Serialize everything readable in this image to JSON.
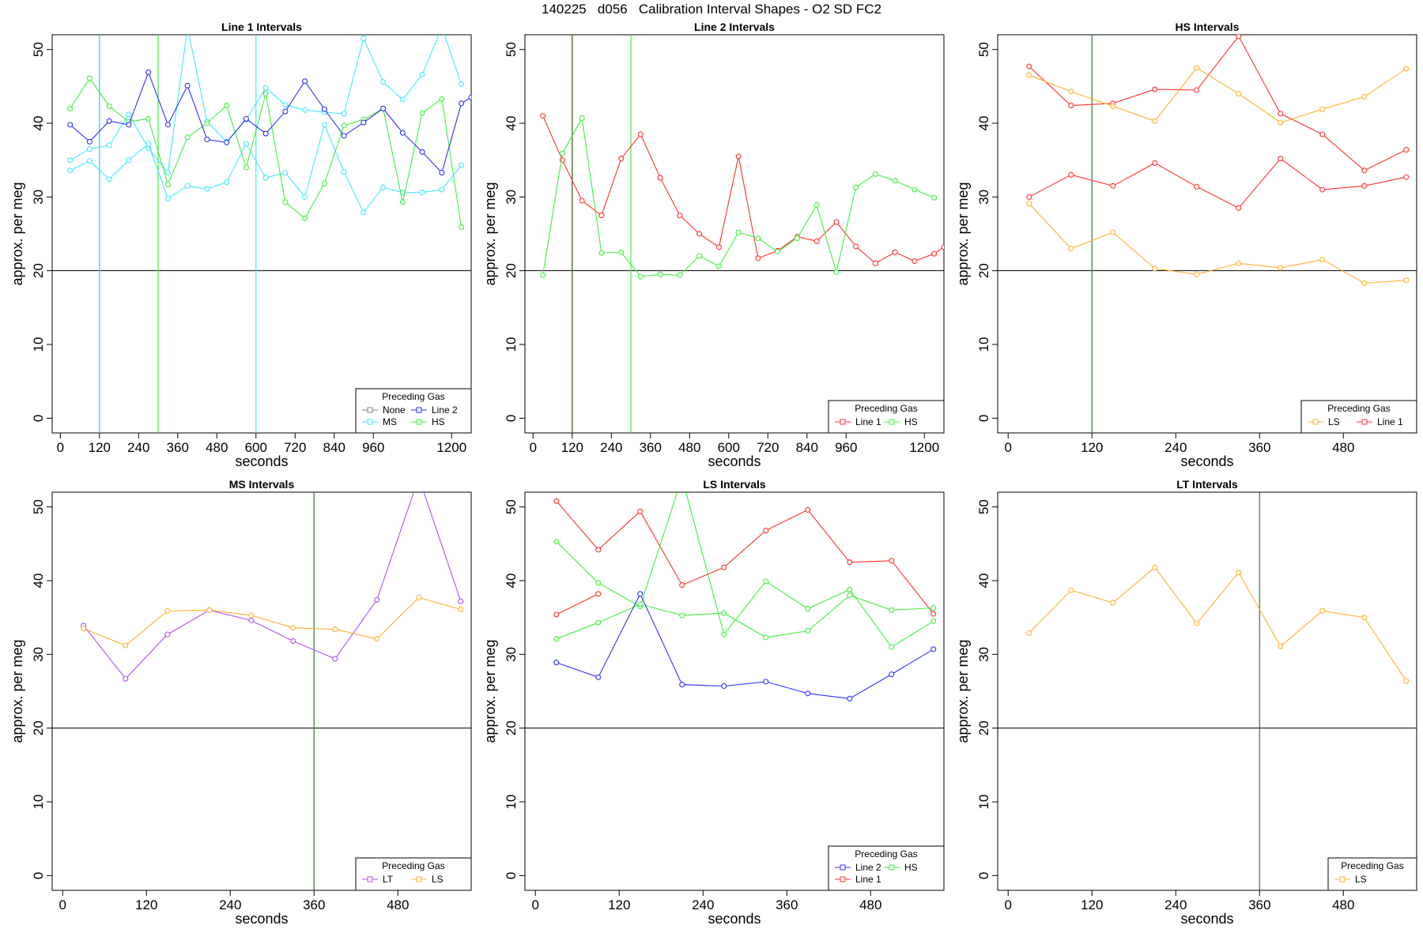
{
  "figure_title": "140225   d056   Calibration Interval Shapes - O2 SD FC2",
  "colors": {
    "None": "#7f7f7f",
    "Line 1": "#ff3030",
    "Line 2": "#3030ff",
    "MS": "#40e8ff",
    "HS": "#40ee40",
    "LS": "#ffb030",
    "LT": "#b050f0",
    "axis": "#000000",
    "ref": "#000000"
  },
  "chart_data": [
    {
      "type": "line",
      "title": "Line 1 Intervals",
      "xlabel": "seconds",
      "ylabel": "approx. per meg",
      "xlim": [
        -25,
        1260
      ],
      "ylim": [
        -2,
        52
      ],
      "xticks": [
        0,
        120,
        240,
        360,
        480,
        600,
        720,
        840,
        960,
        1200
      ],
      "xtick_labels": [
        "0",
        "120",
        "240",
        "360",
        "480",
        "600",
        "720",
        "840",
        "960",
        "1200"
      ],
      "yticks": [
        0,
        10,
        20,
        30,
        40,
        50
      ],
      "hline": 20,
      "vlines": [
        {
          "x": 120,
          "color": "#3030ff"
        },
        {
          "x": 120,
          "color": "#40e8ff"
        },
        {
          "x": 300,
          "color": "#40ee40"
        },
        {
          "x": 600,
          "color": "#40e8ff"
        }
      ],
      "legend": {
        "title": "Preceding Gas",
        "position": "bottom-right",
        "entries": [
          [
            "None",
            "Line 2"
          ],
          [
            "MS",
            "HS"
          ]
        ]
      },
      "series": [
        {
          "name": "MS",
          "x": [
            30,
            90,
            150,
            210,
            270,
            330,
            390,
            450,
            510,
            570,
            630,
            690,
            750,
            810,
            870,
            930,
            990,
            1050,
            1110,
            1170,
            1230
          ],
          "values": [
            35,
            36.5,
            37,
            41.2,
            36.6,
            33.3,
            53,
            40.2,
            37.5,
            40.5,
            44.8,
            42.5,
            41.8,
            41.5,
            41.3,
            51.5,
            45.6,
            43.2,
            46.6,
            53,
            45.3
          ]
        },
        {
          "name": "MS",
          "x": [
            30,
            90,
            150,
            210,
            270,
            330,
            390,
            450,
            510,
            570,
            630,
            690,
            750,
            810,
            870,
            930,
            990,
            1050,
            1110,
            1170,
            1230
          ],
          "values": [
            33.6,
            34.9,
            32.4,
            35,
            37.2,
            29.8,
            31.5,
            31.1,
            32,
            37.2,
            32.6,
            33.3,
            30,
            39.8,
            33.4,
            27.9,
            31.3,
            30.6,
            30.6,
            31,
            34.3
          ]
        },
        {
          "name": "HS",
          "x": [
            30,
            90,
            150,
            210,
            270,
            330,
            390,
            450,
            510,
            570,
            630,
            690,
            750,
            810,
            870,
            930,
            990,
            1050,
            1110,
            1170,
            1230
          ],
          "values": [
            42,
            46.1,
            42.3,
            40.2,
            40.6,
            31.7,
            38.1,
            40,
            42.4,
            34,
            44,
            29.3,
            27.1,
            31.8,
            39.7,
            40.5,
            42,
            29.3,
            41.4,
            43.3,
            25.9
          ]
        },
        {
          "name": "Line 2",
          "x": [
            30,
            90,
            150,
            210,
            270,
            330,
            390,
            450,
            510,
            570,
            630,
            690,
            750,
            810,
            870,
            930,
            990,
            1050,
            1110,
            1170,
            1230,
            1260
          ],
          "values": [
            39.8,
            37.5,
            40.3,
            39.8,
            46.9,
            39.8,
            45.1,
            37.8,
            37.4,
            40.6,
            38.6,
            41.6,
            45.7,
            41.9,
            38.3,
            40.1,
            42,
            38.7,
            36.1,
            33.3,
            42.7,
            43.5
          ]
        }
      ]
    },
    {
      "type": "line",
      "title": "Line 2 Intervals",
      "xlabel": "seconds",
      "ylabel": "approx. per meg",
      "xlim": [
        -25,
        1260
      ],
      "ylim": [
        -2,
        52
      ],
      "xticks": [
        0,
        120,
        240,
        360,
        480,
        600,
        720,
        840,
        960,
        1200
      ],
      "xtick_labels": [
        "0",
        "120",
        "240",
        "360",
        "480",
        "600",
        "720",
        "840",
        "960",
        "1200"
      ],
      "yticks": [
        0,
        10,
        20,
        30,
        40,
        50
      ],
      "hline": 20,
      "vlines": [
        {
          "x": 120,
          "color": "#ff3030"
        },
        {
          "x": 120,
          "color": "#2a7a2a"
        },
        {
          "x": 300,
          "color": "#40ee40"
        }
      ],
      "legend": {
        "title": "Preceding Gas",
        "position": "bottom-right",
        "entries": [
          [
            "Line 1",
            "HS"
          ]
        ]
      },
      "series": [
        {
          "name": "Line 1",
          "x": [
            30,
            90,
            150,
            210,
            270,
            330,
            390,
            450,
            510,
            570,
            630,
            690,
            750,
            810,
            870,
            930,
            990,
            1050,
            1110,
            1170,
            1230,
            1260
          ],
          "values": [
            41,
            35,
            29.5,
            27.5,
            35.2,
            38.5,
            32.6,
            27.5,
            25,
            23.2,
            35.5,
            21.7,
            22.7,
            24.6,
            24,
            26.6,
            23.3,
            21,
            22.5,
            21.3,
            22.3,
            23.2
          ]
        },
        {
          "name": "HS",
          "x": [
            30,
            90,
            150,
            210,
            270,
            330,
            390,
            450,
            510,
            570,
            630,
            690,
            750,
            810,
            870,
            930,
            990,
            1050,
            1110,
            1170,
            1230
          ],
          "values": [
            19.4,
            35.9,
            40.7,
            22.4,
            22.5,
            19.2,
            19.5,
            19.4,
            22,
            20.6,
            25.2,
            24.4,
            22.6,
            24.4,
            28.9,
            19.8,
            31.3,
            33.1,
            32.2,
            31,
            29.9
          ]
        }
      ]
    },
    {
      "type": "line",
      "title": "HS Intervals",
      "xlabel": "seconds",
      "ylabel": "approx. per meg",
      "xlim": [
        -15,
        585
      ],
      "ylim": [
        -2,
        52
      ],
      "xticks": [
        0,
        120,
        240,
        360,
        480
      ],
      "xtick_labels": [
        "0",
        "120",
        "240",
        "360",
        "480"
      ],
      "yticks": [
        0,
        10,
        20,
        30,
        40,
        50
      ],
      "hline": 20,
      "vlines": [
        {
          "x": 120,
          "color": "#2a7a2a"
        }
      ],
      "legend": {
        "title": "Preceding Gas",
        "position": "bottom-right",
        "entries": [
          [
            "LS",
            "Line 1"
          ]
        ]
      },
      "series": [
        {
          "name": "Line 1",
          "x": [
            30,
            90,
            150,
            210,
            270,
            330,
            390,
            450,
            510,
            570
          ],
          "values": [
            47.7,
            42.4,
            42.7,
            44.6,
            44.5,
            51.8,
            41.3,
            38.5,
            33.6,
            36.4
          ]
        },
        {
          "name": "LS",
          "x": [
            30,
            90,
            150,
            210,
            270,
            330,
            390,
            450,
            510,
            570
          ],
          "values": [
            46.5,
            44.3,
            42.3,
            40.3,
            47.5,
            44,
            40.1,
            41.9,
            43.6,
            47.4
          ]
        },
        {
          "name": "Line 1",
          "x": [
            30,
            90,
            150,
            210,
            270,
            330,
            390,
            450,
            510,
            570
          ],
          "values": [
            30,
            33,
            31.5,
            34.6,
            31.4,
            28.5,
            35.2,
            31,
            31.5,
            32.7
          ]
        },
        {
          "name": "LS",
          "x": [
            30,
            90,
            150,
            210,
            270,
            330,
            390,
            450,
            510,
            570
          ],
          "values": [
            29.1,
            23,
            25.2,
            20.3,
            19.5,
            21,
            20.4,
            21.5,
            18.3,
            18.7
          ]
        }
      ]
    },
    {
      "type": "line",
      "title": "MS Intervals",
      "xlabel": "seconds",
      "ylabel": "approx. per meg",
      "xlim": [
        -15,
        585
      ],
      "ylim": [
        -2,
        52
      ],
      "xticks": [
        0,
        120,
        240,
        360,
        480
      ],
      "xtick_labels": [
        "0",
        "120",
        "240",
        "360",
        "480"
      ],
      "yticks": [
        0,
        10,
        20,
        30,
        40,
        50
      ],
      "hline": 20,
      "vlines": [
        {
          "x": 360,
          "color": "#2a7a2a"
        }
      ],
      "legend": {
        "title": "Preceding Gas",
        "position": "bottom-right",
        "entries": [
          [
            "LT",
            "LS"
          ]
        ]
      },
      "series": [
        {
          "name": "LT",
          "x": [
            30,
            90,
            150,
            210,
            270,
            330,
            390,
            450,
            510,
            570
          ],
          "values": [
            33.9,
            26.7,
            32.7,
            36,
            34.6,
            31.8,
            29.4,
            37.4,
            54,
            37.2
          ]
        },
        {
          "name": "LS",
          "x": [
            30,
            90,
            150,
            210,
            270,
            330,
            390,
            450,
            510,
            570
          ],
          "values": [
            33.5,
            31.2,
            35.9,
            36,
            35.3,
            33.6,
            33.4,
            32.1,
            37.7,
            36.1
          ]
        }
      ]
    },
    {
      "type": "line",
      "title": "LS Intervals",
      "xlabel": "seconds",
      "ylabel": "approx. per meg",
      "xlim": [
        -15,
        585
      ],
      "ylim": [
        -2,
        52
      ],
      "xticks": [
        0,
        120,
        240,
        360,
        480
      ],
      "xtick_labels": [
        "0",
        "120",
        "240",
        "360",
        "480"
      ],
      "yticks": [
        0,
        10,
        20,
        30,
        40,
        50
      ],
      "hline": 20,
      "vlines": [],
      "legend": {
        "title": "Preceding Gas",
        "position": "bottom-right",
        "entries": [
          [
            "Line 2",
            "HS"
          ],
          [
            "Line 1"
          ]
        ]
      },
      "series": [
        {
          "name": "Line 1",
          "x": [
            30,
            90,
            150,
            210,
            270,
            330,
            390,
            450,
            510,
            570
          ],
          "values": [
            50.8,
            44.2,
            49.4,
            39.4,
            41.8,
            46.8,
            49.6,
            42.5,
            42.7,
            35.5
          ]
        },
        {
          "name": "Line 1",
          "x": [
            30,
            90
          ],
          "values": [
            35.4,
            38.2
          ]
        },
        {
          "name": "HS",
          "x": [
            30,
            90,
            150,
            210,
            270,
            330,
            390,
            450,
            510,
            570
          ],
          "values": [
            45.3,
            39.7,
            36.5,
            54,
            32.7,
            39.9,
            36.2,
            38.8,
            31,
            34.5
          ]
        },
        {
          "name": "HS",
          "x": [
            30,
            90,
            150,
            210,
            270,
            330,
            390,
            450,
            510,
            570
          ],
          "values": [
            32.1,
            34.3,
            36.8,
            35.3,
            35.6,
            32.3,
            33.2,
            38,
            36,
            36.3
          ]
        },
        {
          "name": "Line 2",
          "x": [
            30,
            90,
            150,
            210,
            270,
            330,
            390,
            450,
            510,
            570
          ],
          "values": [
            28.9,
            26.9,
            38.2,
            25.9,
            25.7,
            26.3,
            24.7,
            24,
            27.3,
            30.7
          ]
        }
      ]
    },
    {
      "type": "line",
      "title": "LT Intervals",
      "xlabel": "seconds",
      "ylabel": "approx. per meg",
      "xlim": [
        -15,
        585
      ],
      "ylim": [
        -2,
        52
      ],
      "xticks": [
        0,
        120,
        240,
        360,
        480
      ],
      "xtick_labels": [
        "0",
        "120",
        "240",
        "360",
        "480"
      ],
      "yticks": [
        0,
        10,
        20,
        30,
        40,
        50
      ],
      "hline": 20,
      "vlines": [
        {
          "x": 360,
          "color": "#2a7a2a"
        }
      ],
      "legend": {
        "title": "Preceding Gas",
        "position": "bottom-right",
        "entries": [
          [
            "LS"
          ]
        ]
      },
      "series": [
        {
          "name": "LS",
          "x": [
            30,
            90,
            150,
            210,
            270,
            330,
            390,
            450,
            510,
            570
          ],
          "values": [
            32.9,
            38.7,
            37,
            41.8,
            34.2,
            41.1,
            31.1,
            35.9,
            35,
            26.4
          ]
        }
      ]
    }
  ]
}
